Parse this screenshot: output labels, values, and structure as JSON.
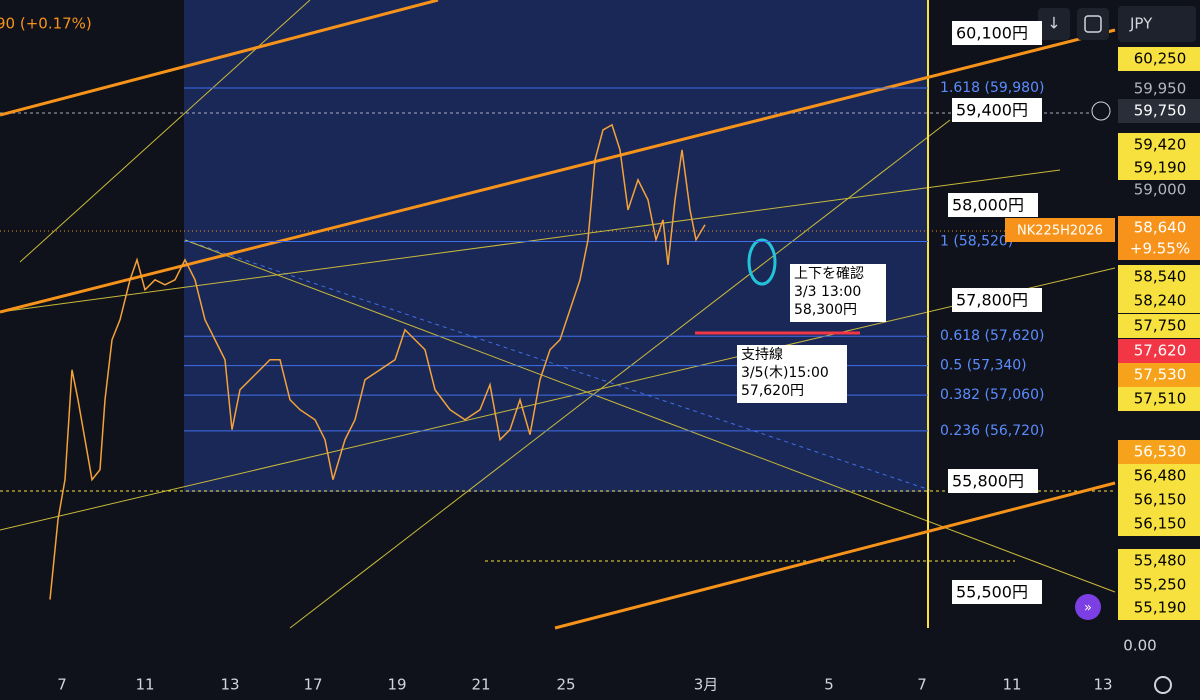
{
  "header": {
    "change": "90 (+0.17%)"
  },
  "toolbar": {
    "currency": "JPY"
  },
  "chart_data": {
    "type": "line",
    "title": "NK225H2026",
    "xlim": [
      0,
      112
    ],
    "ylim": [
      54846,
      60816
    ],
    "xticks": [
      {
        "value": 6.2,
        "label": "7"
      },
      {
        "value": 14.5,
        "label": "11"
      },
      {
        "value": 23,
        "label": "13"
      },
      {
        "value": 31.3,
        "label": "17"
      },
      {
        "value": 39.7,
        "label": "19"
      },
      {
        "value": 48.1,
        "label": "21"
      },
      {
        "value": 56.6,
        "label": "25"
      },
      {
        "value": 70.6,
        "label": "3月"
      },
      {
        "value": 82.9,
        "label": "5"
      },
      {
        "value": 92.2,
        "label": "7"
      },
      {
        "value": 101.2,
        "label": "11"
      },
      {
        "value": 110.3,
        "label": "13"
      }
    ],
    "series": [
      {
        "name": "NK225H2026",
        "color": "#f4a23a",
        "x": [
          5,
          5.8,
          6.5,
          7.2,
          7.8,
          8.5,
          9.2,
          10,
          10.5,
          11.2,
          12,
          13,
          13.7,
          14.5,
          15.5,
          16.5,
          17.5,
          18.5,
          19.5,
          20.5,
          21.5,
          22.5,
          23.2,
          24,
          25,
          26,
          27,
          28,
          29,
          30,
          31.5,
          32.5,
          33.3,
          34.5,
          35.5,
          36.5,
          38,
          39.5,
          40.5,
          41.5,
          42.5,
          43.5,
          45,
          46.5,
          48,
          49,
          50,
          51,
          52,
          53,
          54,
          55,
          56,
          57,
          58,
          58.8,
          59.5,
          60.3,
          61.2,
          62,
          62.8,
          63.8,
          64.8,
          65.6,
          66.3,
          66.8,
          67.5,
          68.2,
          69,
          69.6,
          70.5
        ],
        "values": [
          55116,
          55876,
          56256,
          57301,
          57016,
          56636,
          56256,
          56351,
          57016,
          57586,
          57776,
          58156,
          58346,
          58061,
          58156,
          58109,
          58156,
          58346,
          58156,
          57776,
          57586,
          57396,
          56731,
          57111,
          57206,
          57301,
          57396,
          57396,
          57016,
          56921,
          56826,
          56636,
          56256,
          56636,
          56826,
          57206,
          57301,
          57396,
          57681,
          57586,
          57491,
          57111,
          56921,
          56826,
          56921,
          57159,
          56636,
          56731,
          57016,
          56684,
          57206,
          57491,
          57586,
          57871,
          58156,
          58536,
          59296,
          59581,
          59629,
          59391,
          58821,
          59106,
          58916,
          58536,
          58726,
          58299,
          58916,
          59391,
          58821,
          58536,
          58679
        ]
      }
    ],
    "fib_levels": [
      {
        "label": "1.618 (59,980)",
        "value": 59980
      },
      {
        "label": "1 (58,520)",
        "value": 58520
      },
      {
        "label": "0.618 (57,620)",
        "value": 57620
      },
      {
        "label": "0.5 (57,340)",
        "value": 57340
      },
      {
        "label": "0.382 (57,060)",
        "value": 57060
      },
      {
        "label": "0.236 (56,720)",
        "value": 56720
      }
    ],
    "price_notes": [
      "60,100円",
      "59,400円",
      "58,000円",
      "57,800円",
      "55,800円",
      "55,500円"
    ],
    "callouts": [
      {
        "lines": [
          "上下を確認",
          "3/3 13:00",
          "58,300円"
        ]
      },
      {
        "lines": [
          "支持線",
          "3/5(木)15:00",
          "57,620円"
        ]
      }
    ],
    "symbol_badge": {
      "name": "NK225H2026",
      "price": "58,640",
      "change": "+9.55%"
    },
    "axis_labels": [
      {
        "label": "60,250",
        "color": "#f7e13e"
      },
      {
        "label": "59,950",
        "color": "none"
      },
      {
        "label": "59,750",
        "color": "#2a2e39"
      },
      {
        "label": "59,420",
        "color": "#f7e13e"
      },
      {
        "label": "59,190",
        "color": "#f7e13e"
      },
      {
        "label": "59,000",
        "color": "none"
      },
      {
        "label": "58,540",
        "color": "#f7e13e"
      },
      {
        "label": "58,240",
        "color": "#f7e13e"
      },
      {
        "label": "57,750",
        "color": "#f7e13e"
      },
      {
        "label": "57,620",
        "color": "#f23645"
      },
      {
        "label": "57,530",
        "color": "#f7a21b"
      },
      {
        "label": "57,510",
        "color": "#f7e13e"
      },
      {
        "label": "56,530",
        "color": "#f7a21b"
      },
      {
        "label": "56,480",
        "color": "#f7e13e"
      },
      {
        "label": "56,150",
        "color": "#f7e13e"
      },
      {
        "label": "56,150",
        "color": "#f7e13e"
      },
      {
        "label": "55,480",
        "color": "#f7e13e"
      },
      {
        "label": "55,250",
        "color": "#f7e13e"
      },
      {
        "label": "55,190",
        "color": "#f7e13e"
      }
    ],
    "volume_axis": "0.00"
  }
}
